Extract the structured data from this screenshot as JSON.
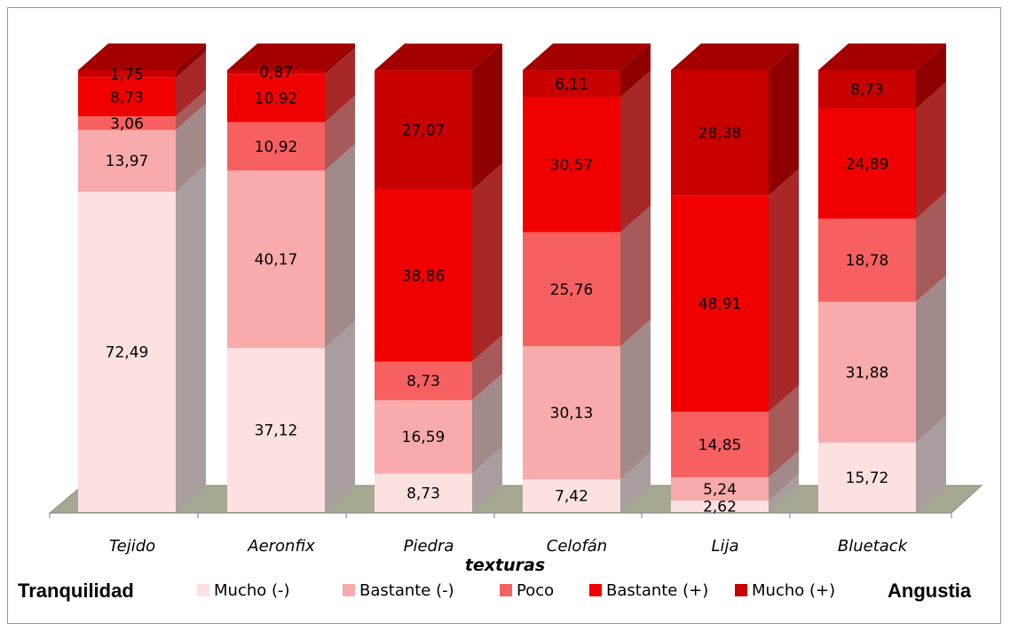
{
  "chart_data": {
    "type": "bar",
    "stacked": true,
    "three_d": true,
    "xlabel": "texturas",
    "categories": [
      "Tejido",
      "Aeronfix",
      "Piedra",
      "Celofán",
      "Lija",
      "Bluetack"
    ],
    "series": [
      {
        "name": "Mucho (-)",
        "color": "#fde0e0",
        "side": "#a89e9e",
        "top": "#fbe4e4",
        "values": [
          "72,49",
          "37,12",
          "8,73",
          "7,42",
          "2,62",
          "15,72"
        ]
      },
      {
        "name": "Bastante (-)",
        "color": "#f9aaaa",
        "side": "#a38a8a",
        "top": "#f7b0b0",
        "values": [
          "13,97",
          "40,17",
          "16,59",
          "30,13",
          "5,24",
          "31,88"
        ]
      },
      {
        "name": "Poco",
        "color": "#f76060",
        "side": "#a65a5a",
        "top": "#f26666",
        "values": [
          "3,06",
          "10,92",
          "8,73",
          "25,76",
          "14,85",
          "18,78"
        ]
      },
      {
        "name": "Bastante (+)",
        "color": "#f00000",
        "side": "#a82828",
        "top": "#cc0000",
        "values": [
          "8,73",
          "10,92",
          "38,86",
          "30,57",
          "48,91",
          "24,89"
        ]
      },
      {
        "name": "Mucho (+)",
        "color": "#c80000",
        "side": "#8e0000",
        "top": "#a40000",
        "values": [
          "1,75",
          "0,87",
          "27,07",
          "6,11",
          "28,38",
          "8,73"
        ]
      }
    ],
    "ylim": [
      0,
      100
    ],
    "legend_position": "bottom",
    "legend_left_label": "Tranquilidad",
    "legend_right_label": "Angustia"
  }
}
